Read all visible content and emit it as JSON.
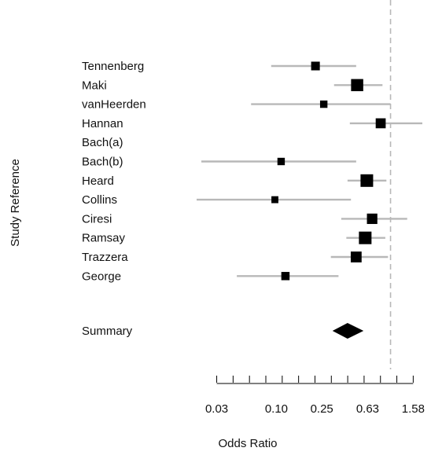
{
  "chart_data": {
    "type": "forest",
    "ylabel": "Study Reference",
    "xlabel": "Odds Ratio",
    "x_scale": "log",
    "xlim": [
      0.02,
      1.9
    ],
    "x_ticks": [
      0.03,
      0.1,
      0.25,
      0.63,
      1.58
    ],
    "x_tick_labels": [
      "0.03",
      "0.10",
      "0.25",
      "0.63",
      "1.58"
    ],
    "reference_line": 1.0,
    "studies": [
      {
        "name": "Tennenberg",
        "or": 0.22,
        "lo": 0.09,
        "hi": 0.5,
        "weight": 0.55
      },
      {
        "name": "Maki",
        "or": 0.51,
        "lo": 0.32,
        "hi": 0.85,
        "weight": 0.95
      },
      {
        "name": "vanHeerden",
        "or": 0.26,
        "lo": 0.06,
        "hi": 1.0,
        "weight": 0.4
      },
      {
        "name": "Hannan",
        "or": 0.82,
        "lo": 0.44,
        "hi": 1.9,
        "weight": 0.7
      },
      {
        "name": "Bach(a)",
        "or": null,
        "lo": null,
        "hi": null,
        "weight": 0
      },
      {
        "name": "Bach(b)",
        "or": 0.11,
        "lo": 0.022,
        "hi": 0.5,
        "weight": 0.4
      },
      {
        "name": "Heard",
        "or": 0.62,
        "lo": 0.42,
        "hi": 0.92,
        "weight": 1.0
      },
      {
        "name": "Collins",
        "or": 0.097,
        "lo": 0.02,
        "hi": 0.45,
        "weight": 0.35
      },
      {
        "name": "Ciresi",
        "or": 0.69,
        "lo": 0.37,
        "hi": 1.4,
        "weight": 0.75
      },
      {
        "name": "Ramsay",
        "or": 0.6,
        "lo": 0.41,
        "hi": 0.9,
        "weight": 1.0
      },
      {
        "name": "Trazzera",
        "or": 0.5,
        "lo": 0.3,
        "hi": 0.95,
        "weight": 0.8
      },
      {
        "name": "George",
        "or": 0.12,
        "lo": 0.045,
        "hi": 0.35,
        "weight": 0.5
      }
    ],
    "summary": {
      "name": "Summary",
      "or": 0.42,
      "lo": 0.31,
      "hi": 0.58
    }
  }
}
